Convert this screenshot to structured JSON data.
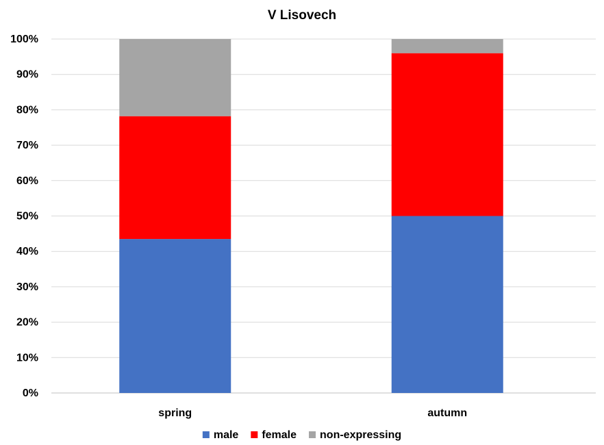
{
  "chart_data": {
    "type": "bar",
    "stacked": true,
    "title": "V Lisovech",
    "categories": [
      "spring",
      "autumn"
    ],
    "series": [
      {
        "name": "male",
        "color": "#4472C4",
        "values": [
          43.5,
          50
        ]
      },
      {
        "name": "female",
        "color": "#FF0000",
        "values": [
          34.7,
          46
        ]
      },
      {
        "name": "non-expressing",
        "color": "#A5A5A5",
        "values": [
          21.8,
          4
        ]
      }
    ],
    "ylim": [
      0,
      100
    ],
    "yticks": [
      "0%",
      "10%",
      "20%",
      "30%",
      "40%",
      "50%",
      "60%",
      "70%",
      "80%",
      "90%",
      "100%"
    ],
    "grid": true,
    "legend": "bottom"
  }
}
